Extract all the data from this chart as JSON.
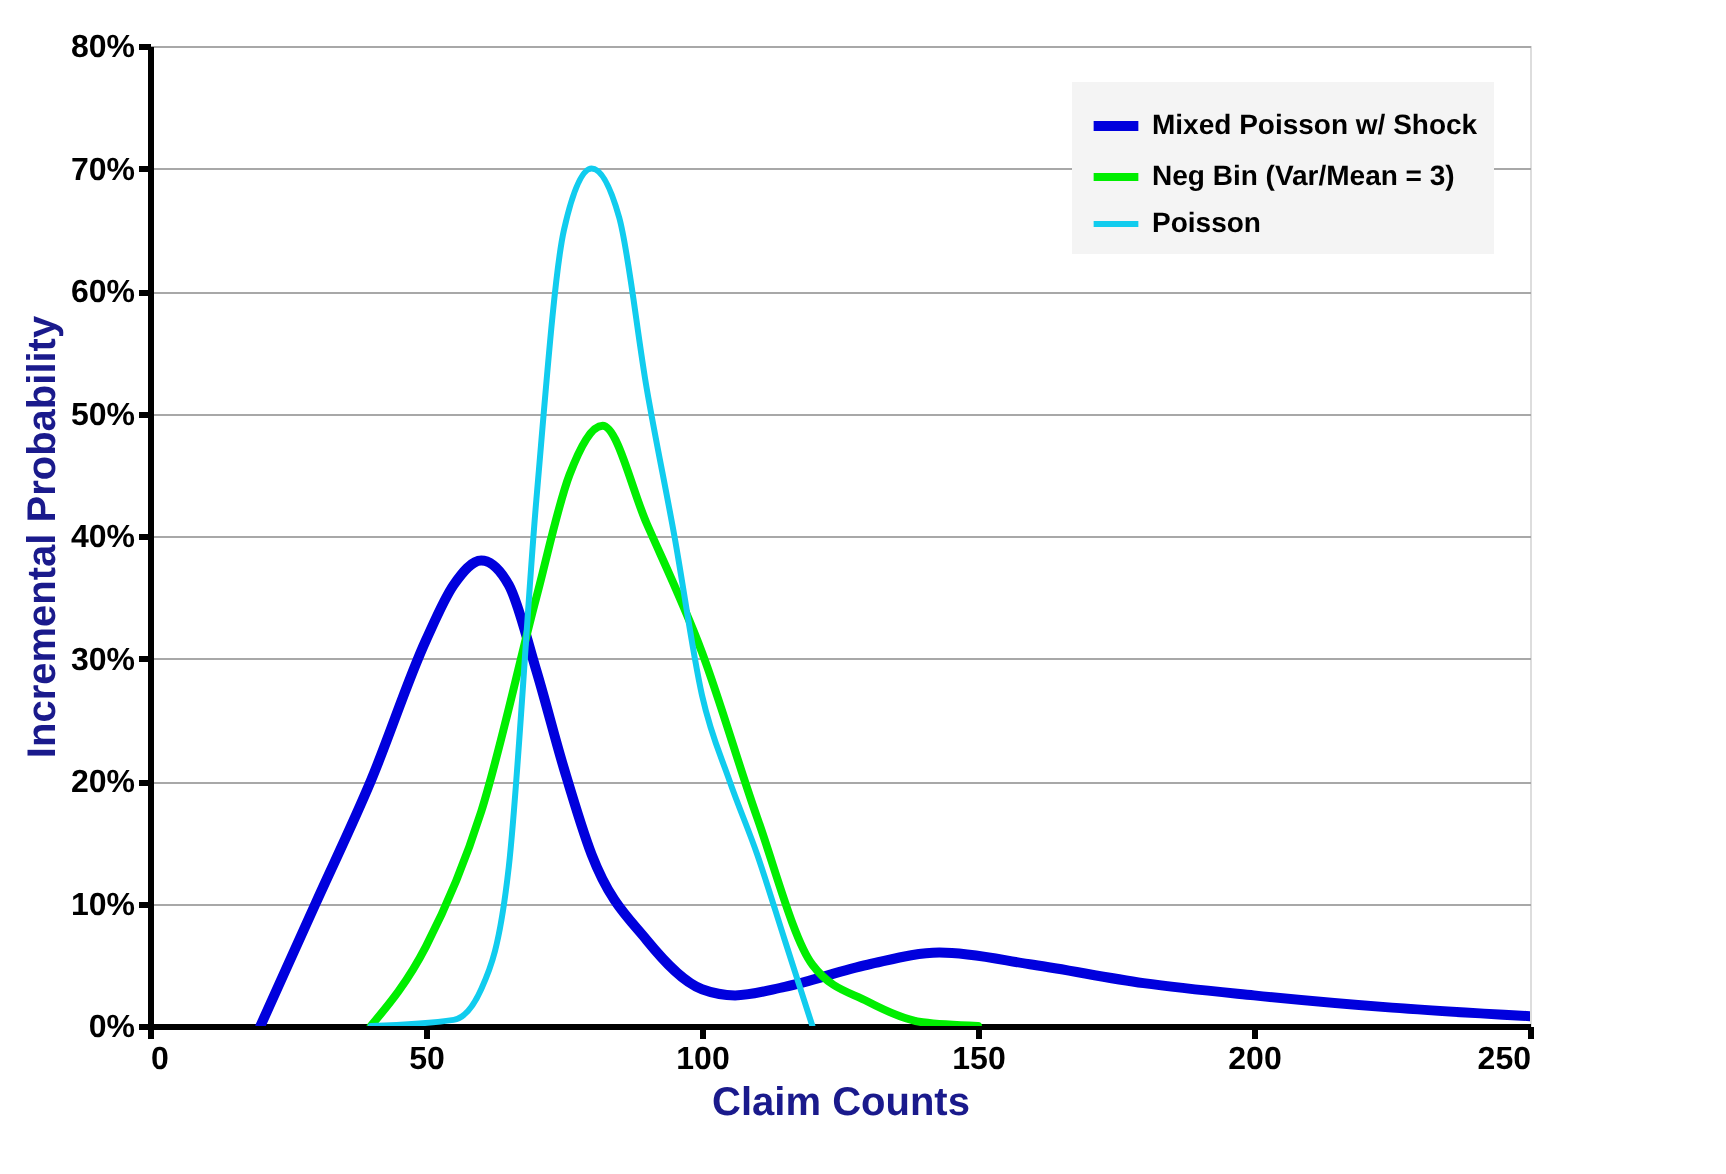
{
  "chart_data": {
    "type": "line",
    "xlabel": "Claim Counts",
    "ylabel": "Incremental Probability",
    "xlim": [
      0,
      250
    ],
    "xticks": [
      0,
      50,
      100,
      150,
      200,
      250
    ],
    "ylim": [
      0,
      80
    ],
    "yticks": [
      {
        "value": 0,
        "label": "0%"
      },
      {
        "value": 10,
        "label": "10%"
      },
      {
        "value": 20,
        "label": "20%"
      },
      {
        "value": 30,
        "label": "30%"
      },
      {
        "value": 40,
        "label": "40%"
      },
      {
        "value": 50,
        "label": "50%"
      },
      {
        "value": 60,
        "label": "60%"
      },
      {
        "value": 70,
        "label": "70%"
      },
      {
        "value": 80,
        "label": "80%"
      }
    ],
    "grid": "y",
    "legend": "top right",
    "marker": "none",
    "line_style": "solid",
    "series": [
      {
        "name": "Mixed Poisson w/ Shock",
        "color": "#0000dd",
        "x": [
          20,
          30,
          40,
          50,
          55,
          60,
          65,
          70,
          75,
          80,
          90,
          100,
          106,
          115,
          130,
          143,
          160,
          180,
          200,
          225,
          250
        ],
        "values": [
          0,
          10,
          20,
          31.5,
          36,
          38,
          36,
          29,
          21,
          14,
          7,
          3,
          2.5,
          3.2,
          5,
          6,
          5,
          3.5,
          2.5,
          1.5,
          0.8
        ]
      },
      {
        "name": "Neg Bin (Var/Mean = 3)",
        "color": "#00ee00",
        "x": [
          40,
          50,
          60,
          70,
          76,
          82,
          90,
          100,
          110,
          120,
          130,
          140,
          150
        ],
        "values": [
          0,
          6.5,
          17.5,
          35,
          45,
          49,
          41,
          30.5,
          17,
          5,
          2,
          0.3,
          0
        ]
      },
      {
        "name": "Poisson",
        "color": "#11ccee",
        "x": [
          40,
          55,
          60,
          65,
          70,
          75,
          80,
          85,
          90,
          95,
          100,
          105,
          110,
          115,
          120
        ],
        "values": [
          0,
          0.5,
          3,
          13,
          43,
          65,
          70,
          66,
          52,
          40,
          27,
          20,
          14,
          7,
          0
        ]
      }
    ]
  }
}
